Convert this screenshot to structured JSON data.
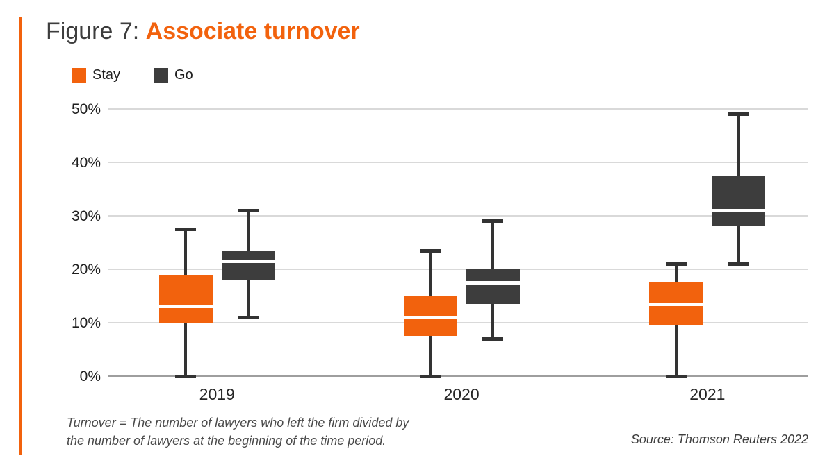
{
  "figure": {
    "label": "Figure 7:",
    "title": "Associate turnover"
  },
  "legend": {
    "items": [
      {
        "label": "Stay",
        "color": "#F2620D"
      },
      {
        "label": "Go",
        "color": "#3D3D3D"
      }
    ]
  },
  "footnote": {
    "line1": "Turnover = The number of lawyers who left the firm divided by",
    "line2": "the number of lawyers at the beginning of the time period."
  },
  "source": "Source: Thomson Reuters 2022",
  "colors": {
    "accent_orange": "#F2620D",
    "dark_gray": "#3D3D3D",
    "gridline": "#D9D9D9",
    "baseline": "#9E9E9E",
    "whisker": "#333333",
    "median_line": "#FFFFFF",
    "title_label": "#3D3D3D",
    "background": "#FFFFFF"
  },
  "chart_data": {
    "type": "boxplot",
    "title": "Associate turnover",
    "categories": [
      "2019",
      "2020",
      "2021"
    ],
    "ylim": [
      0,
      50
    ],
    "grid": true,
    "legend_position": "top-left",
    "y_ticks": [
      {
        "label": "50%",
        "value": 50
      },
      {
        "label": "40%",
        "value": 40
      },
      {
        "label": "30%",
        "value": 30
      },
      {
        "label": "20%",
        "value": 20
      },
      {
        "label": "10%",
        "value": 10
      },
      {
        "label": "0%",
        "value": 0
      }
    ],
    "series": [
      {
        "name": "Stay",
        "color": "#F2620D",
        "boxes": [
          {
            "category": "2019",
            "whisker_low": 0,
            "q1": 10,
            "median": 13,
            "q3": 19,
            "whisker_high": 27.5
          },
          {
            "category": "2020",
            "whisker_low": 0,
            "q1": 7.5,
            "median": 11,
            "q3": 15,
            "whisker_high": 23.5
          },
          {
            "category": "2021",
            "whisker_low": 0,
            "q1": 9.5,
            "median": 13.5,
            "q3": 17.5,
            "whisker_high": 21
          }
        ]
      },
      {
        "name": "Go",
        "color": "#3D3D3D",
        "boxes": [
          {
            "category": "2019",
            "whisker_low": 11,
            "q1": 18,
            "median": 21.5,
            "q3": 23.5,
            "whisker_high": 31
          },
          {
            "category": "2020",
            "whisker_low": 7,
            "q1": 13.5,
            "median": 17.5,
            "q3": 20,
            "whisker_high": 29
          },
          {
            "category": "2021",
            "whisker_low": 21,
            "q1": 28,
            "median": 31,
            "q3": 37.5,
            "whisker_high": 49
          }
        ]
      }
    ]
  }
}
